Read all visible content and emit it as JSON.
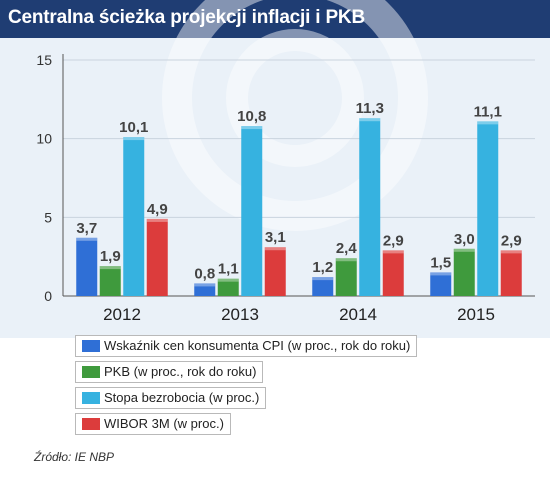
{
  "header": {
    "title": "Centralna ścieżka projekcji inflacji i PKB"
  },
  "colors": {
    "header_bg": "#1f3d73",
    "plot_bg": "#eaf1f8",
    "cpi": "#2f6fd6",
    "pkb": "#3f9a3d",
    "unemployment": "#36b2e0",
    "wibor": "#dc3c3c"
  },
  "chart_data": {
    "type": "bar",
    "categories": [
      "2012",
      "2013",
      "2014",
      "2015"
    ],
    "series": [
      {
        "name": "Wskaźnik cen konsumenta CPI (w proc., rok do roku)",
        "values": [
          3.7,
          0.8,
          1.2,
          1.5
        ],
        "labels": [
          "3,7",
          "0,8",
          "1,2",
          "1,5"
        ]
      },
      {
        "name": "PKB (w proc., rok do roku)",
        "values": [
          1.9,
          1.1,
          2.4,
          3.0
        ],
        "labels": [
          "1,9",
          "1,1",
          "2,4",
          "3,0"
        ]
      },
      {
        "name": "Stopa bezrobocia (w proc.)",
        "values": [
          10.1,
          10.8,
          11.3,
          11.1
        ],
        "labels": [
          "10,1",
          "10,8",
          "11,3",
          "11,1"
        ]
      },
      {
        "name": "WIBOR 3M (w proc.)",
        "values": [
          4.9,
          3.1,
          2.9,
          2.9
        ],
        "labels": [
          "4,9",
          "3,1",
          "2,9",
          "2,9"
        ]
      }
    ],
    "y_ticks": [
      "0",
      "5",
      "10",
      "15"
    ],
    "ylim": [
      0,
      15
    ],
    "grid": true,
    "legend_position": "bottom-left"
  },
  "source": "Źródło: IE NBP"
}
